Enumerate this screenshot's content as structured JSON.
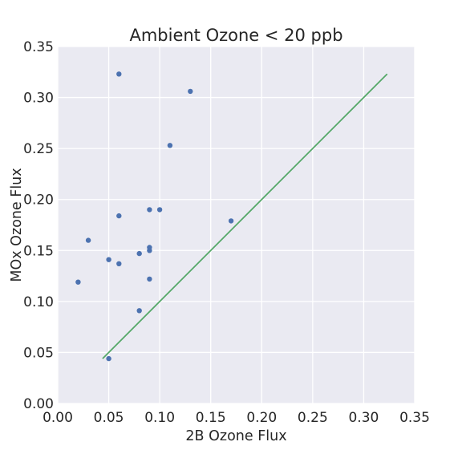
{
  "chart_data": {
    "type": "scatter",
    "title": "Ambient Ozone < 20 ppb",
    "xlabel": "2B Ozone Flux",
    "ylabel": "MOx Ozone Flux",
    "xlim": [
      0.0,
      0.35
    ],
    "ylim": [
      0.0,
      0.35
    ],
    "xticks": [
      "0.00",
      "0.05",
      "0.10",
      "0.15",
      "0.20",
      "0.25",
      "0.30",
      "0.35"
    ],
    "yticks": [
      "0.00",
      "0.05",
      "0.10",
      "0.15",
      "0.20",
      "0.25",
      "0.30",
      "0.35"
    ],
    "grid": true,
    "background": "#eaeaf2",
    "series": [
      {
        "kind": "scatter",
        "color": "#4c72b0",
        "points": [
          {
            "x": 0.06,
            "y": 0.323
          },
          {
            "x": 0.13,
            "y": 0.306
          },
          {
            "x": 0.11,
            "y": 0.253
          },
          {
            "x": 0.09,
            "y": 0.19
          },
          {
            "x": 0.1,
            "y": 0.19
          },
          {
            "x": 0.06,
            "y": 0.184
          },
          {
            "x": 0.17,
            "y": 0.179
          },
          {
            "x": 0.03,
            "y": 0.16
          },
          {
            "x": 0.09,
            "y": 0.153
          },
          {
            "x": 0.09,
            "y": 0.15
          },
          {
            "x": 0.08,
            "y": 0.147
          },
          {
            "x": 0.05,
            "y": 0.141
          },
          {
            "x": 0.06,
            "y": 0.137
          },
          {
            "x": 0.09,
            "y": 0.122
          },
          {
            "x": 0.02,
            "y": 0.119
          },
          {
            "x": 0.08,
            "y": 0.091
          },
          {
            "x": 0.05,
            "y": 0.044
          }
        ]
      },
      {
        "kind": "line",
        "color": "#55a868",
        "points": [
          {
            "x": 0.044,
            "y": 0.044
          },
          {
            "x": 0.323,
            "y": 0.323
          }
        ]
      }
    ]
  }
}
